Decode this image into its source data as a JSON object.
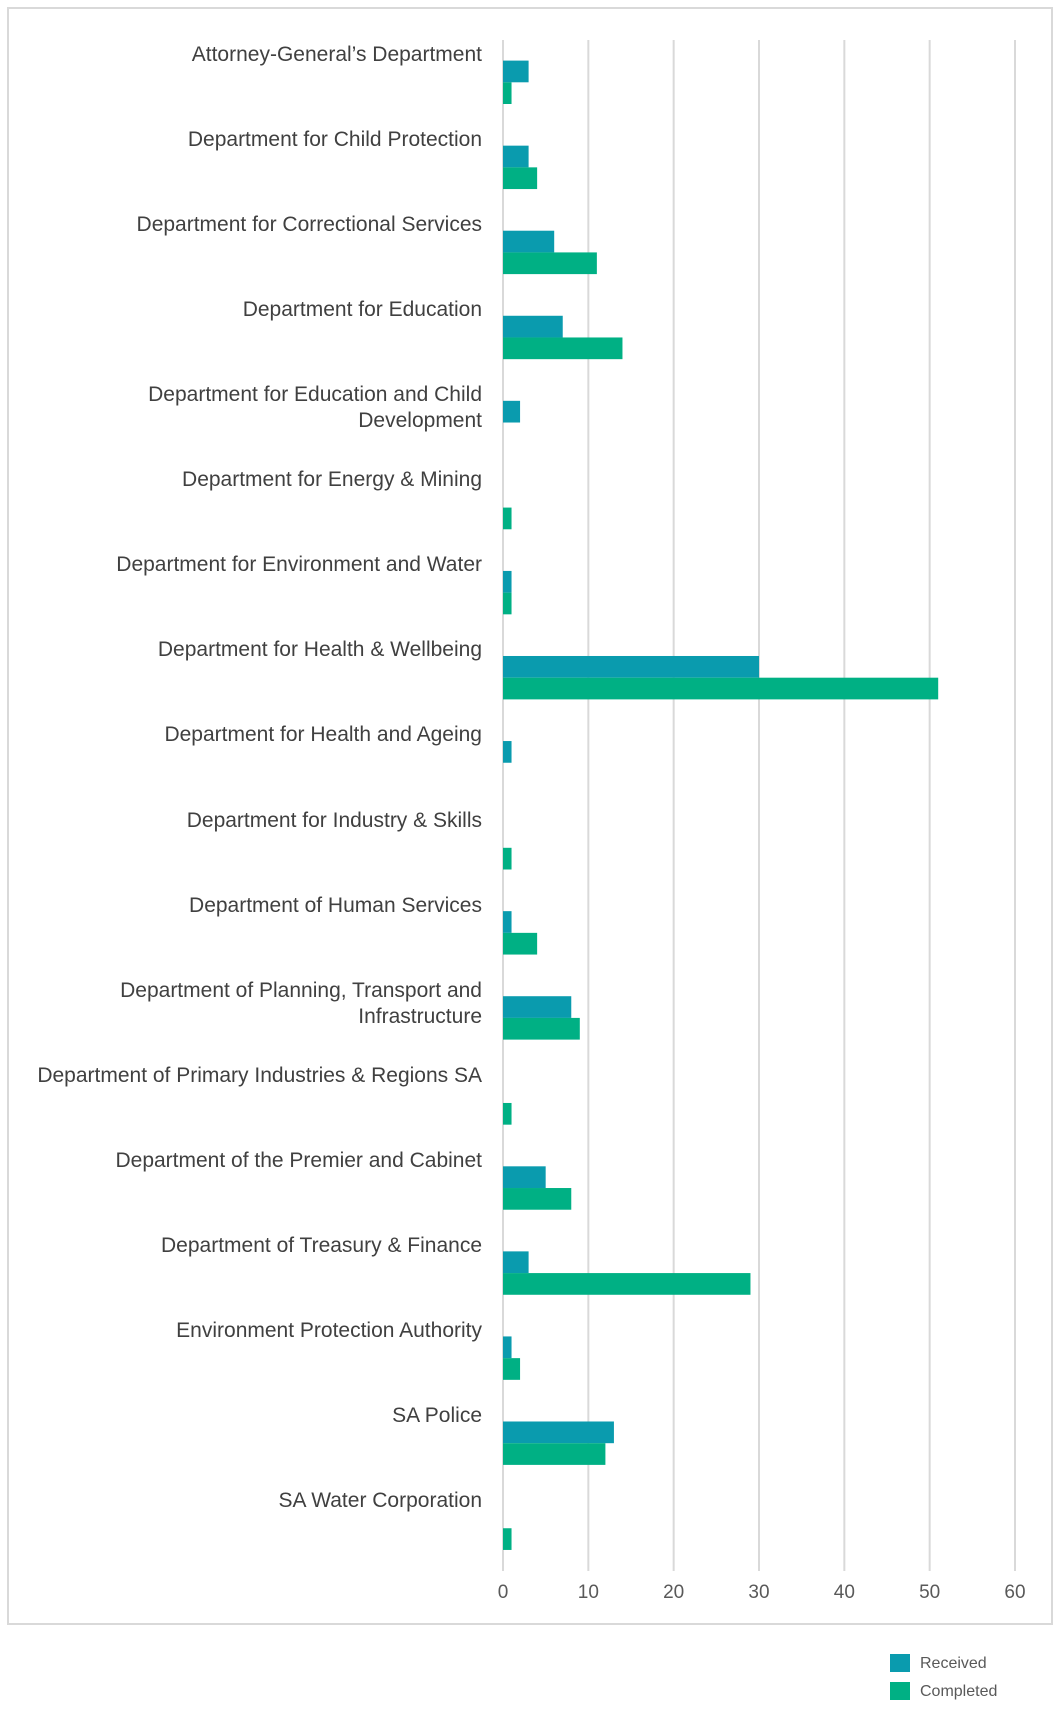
{
  "chart_data": {
    "type": "bar",
    "orientation": "horizontal",
    "categories": [
      "Attorney-General’s Department",
      "Department for Child Protection",
      "Department for Correctional Services",
      "Department for Education",
      "Department for Education and Child Development",
      "Department for Energy & Mining",
      "Department for Environment and Water",
      "Department for Health & Wellbeing",
      "Department for Health and Ageing",
      "Department for Industry & Skills",
      "Department of Human Services",
      "Department of Planning, Transport and Infrastructure",
      "Department of Primary Industries & Regions SA",
      "Department of the Premier and Cabinet",
      "Department of Treasury & Finance",
      "Environment Protection Authority",
      "SA Police",
      "SA Water Corporation"
    ],
    "series": [
      {
        "name": "Received",
        "color": "#0a9bae",
        "values": [
          3,
          3,
          6,
          7,
          2,
          null,
          1,
          30,
          1,
          null,
          1,
          8,
          null,
          5,
          3,
          1,
          13,
          null
        ]
      },
      {
        "name": "Completed",
        "color": "#00b084",
        "values": [
          1,
          4,
          11,
          14,
          null,
          1,
          1,
          51,
          null,
          1,
          4,
          9,
          1,
          8,
          29,
          2,
          12,
          1
        ]
      }
    ],
    "xlim": [
      0,
      60
    ],
    "xticks": [
      0,
      10,
      20,
      30,
      40,
      50,
      60
    ],
    "grid": true,
    "legend": "bottom-right"
  }
}
